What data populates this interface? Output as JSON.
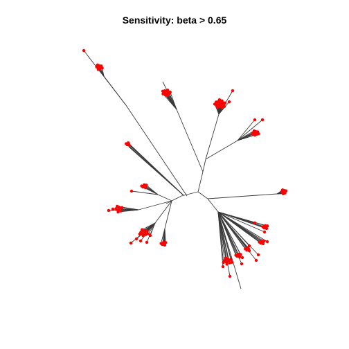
{
  "plot": {
    "title": "Sensitivity: beta > 0.65"
  },
  "style": {
    "edge_color": "#3a3a3a",
    "tip_color": "#ff0000",
    "background": "#ffffff"
  }
}
